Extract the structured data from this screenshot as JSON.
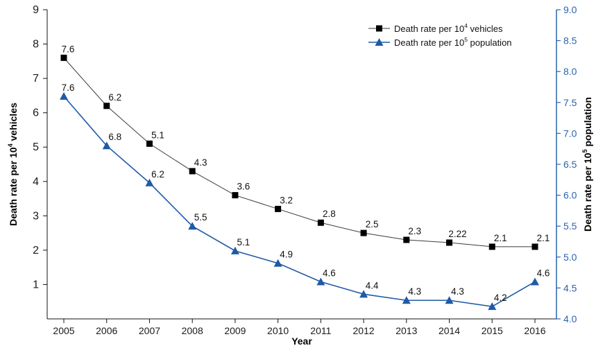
{
  "chart_data": {
    "type": "line",
    "x": [
      2005,
      2006,
      2007,
      2008,
      2009,
      2010,
      2011,
      2012,
      2013,
      2014,
      2015,
      2016
    ],
    "x_tick_labels": [
      "2005",
      "2006",
      "2007",
      "2008",
      "2009",
      "2010",
      "2011",
      "2012",
      "2013",
      "2014",
      "2015",
      "2016"
    ],
    "xlabel": "Year",
    "ylabel_left": {
      "main": "Death rate per 10",
      "sup": "4",
      "rest": " vehicles"
    },
    "ylabel_right": {
      "main": "Death rate per 10",
      "sup": "5",
      "rest": "  population"
    },
    "ylim_left": [
      0,
      9
    ],
    "y_ticks_left": [
      "9",
      "8",
      "7",
      "6",
      "5",
      "4",
      "3",
      "2",
      "1"
    ],
    "ylim_right": [
      4.0,
      9.0
    ],
    "y_ticks_right": [
      "9.0",
      "8.5",
      "8.0",
      "7.5",
      "7.0",
      "6.5",
      "6.0",
      "5.5",
      "5.0",
      "4.5",
      "4.0"
    ],
    "grid": false,
    "legend_position": "top-right",
    "series": [
      {
        "name": "Death rate per 10^4 vehicles",
        "legend": {
          "main": "Death rate per 10",
          "sup": "4",
          "rest": " vehicles"
        },
        "axis": "left",
        "marker": "square",
        "color": "#000000",
        "line_color": "#3a3a3a",
        "values": [
          7.6,
          6.2,
          5.1,
          4.3,
          3.6,
          3.2,
          2.8,
          2.5,
          2.3,
          2.22,
          2.1,
          2.1
        ],
        "labels": [
          "7.6",
          "6.2",
          "5.1",
          "4.3",
          "3.6",
          "3.2",
          "2.8",
          "2.5",
          "2.3",
          "2.22",
          "2.1",
          "2.1"
        ]
      },
      {
        "name": "Death rate per 10^5 population",
        "legend": {
          "main": "Death rate per 10",
          "sup": "5",
          "rest": "  population"
        },
        "axis": "right",
        "marker": "triangle",
        "color": "#1f5aa6",
        "line_color": "#1f5aa6",
        "values": [
          7.6,
          6.8,
          6.2,
          5.5,
          5.1,
          4.9,
          4.6,
          4.4,
          4.3,
          4.3,
          4.2,
          4.6
        ],
        "labels": [
          "7.6",
          "6.8",
          "6.2",
          "5.5",
          "5.1",
          "4.9",
          "4.6",
          "4.4",
          "4.3",
          "4.3",
          "4.2",
          "4.6"
        ]
      }
    ]
  }
}
